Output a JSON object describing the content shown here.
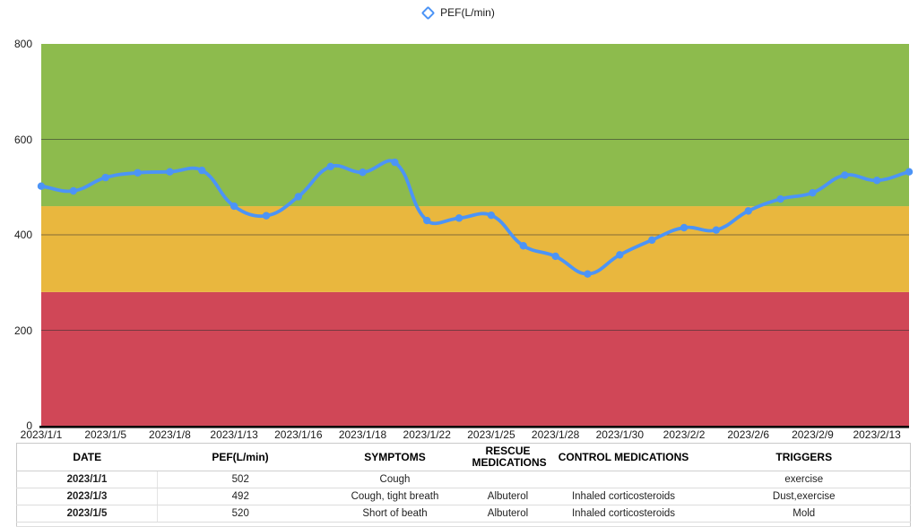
{
  "legend": {
    "label": "PEF(L/min)"
  },
  "chart_data": {
    "type": "line",
    "title": "",
    "xlabel": "",
    "ylabel": "",
    "ylim": [
      0,
      800
    ],
    "y_ticks": [
      0,
      200,
      400,
      600,
      800
    ],
    "grid": true,
    "legend_position": "top",
    "line_color": "#4C94F6",
    "zones": [
      {
        "name": "red",
        "from": 0,
        "to": 280,
        "color": "#D04757"
      },
      {
        "name": "yellow",
        "from": 280,
        "to": 460,
        "color": "#E9B73E"
      },
      {
        "name": "green",
        "from": 460,
        "to": 800,
        "color": "#8DBB4D"
      }
    ],
    "x_tick_labels": [
      "2023/1/1",
      "2023/1/5",
      "2023/1/8",
      "2023/1/13",
      "2023/1/16",
      "2023/1/18",
      "2023/1/22",
      "2023/1/25",
      "2023/1/28",
      "2023/1/30",
      "2023/2/2",
      "2023/2/6",
      "2023/2/9",
      "2023/2/13"
    ],
    "points_per_tick": 2,
    "series": [
      {
        "name": "PEF(L/min)",
        "values": [
          502,
          492,
          520,
          530,
          532,
          535,
          460,
          440,
          480,
          543,
          531,
          552,
          430,
          435,
          441,
          377,
          355,
          318,
          358,
          389,
          415,
          410,
          450,
          475,
          488,
          525,
          514,
          532
        ]
      }
    ]
  },
  "table": {
    "columns": [
      "DATE",
      "PEF(L/min)",
      "SYMPTOMS",
      "RESCUE MEDICATIONS",
      "CONTROL MEDICATIONS",
      "TRIGGERS"
    ],
    "rows": [
      {
        "date": "2023/1/1",
        "pef": "502",
        "symptoms": "Cough",
        "rescue": "",
        "control": "",
        "triggers": "exercise"
      },
      {
        "date": "2023/1/3",
        "pef": "492",
        "symptoms": "Cough, tight breath",
        "rescue": "Albuterol",
        "control": "Inhaled corticosteroids",
        "triggers": "Dust,exercise"
      },
      {
        "date": "2023/1/5",
        "pef": "520",
        "symptoms": "Short of beath",
        "rescue": "Albuterol",
        "control": "Inhaled corticosteroids",
        "triggers": "Mold"
      }
    ]
  }
}
